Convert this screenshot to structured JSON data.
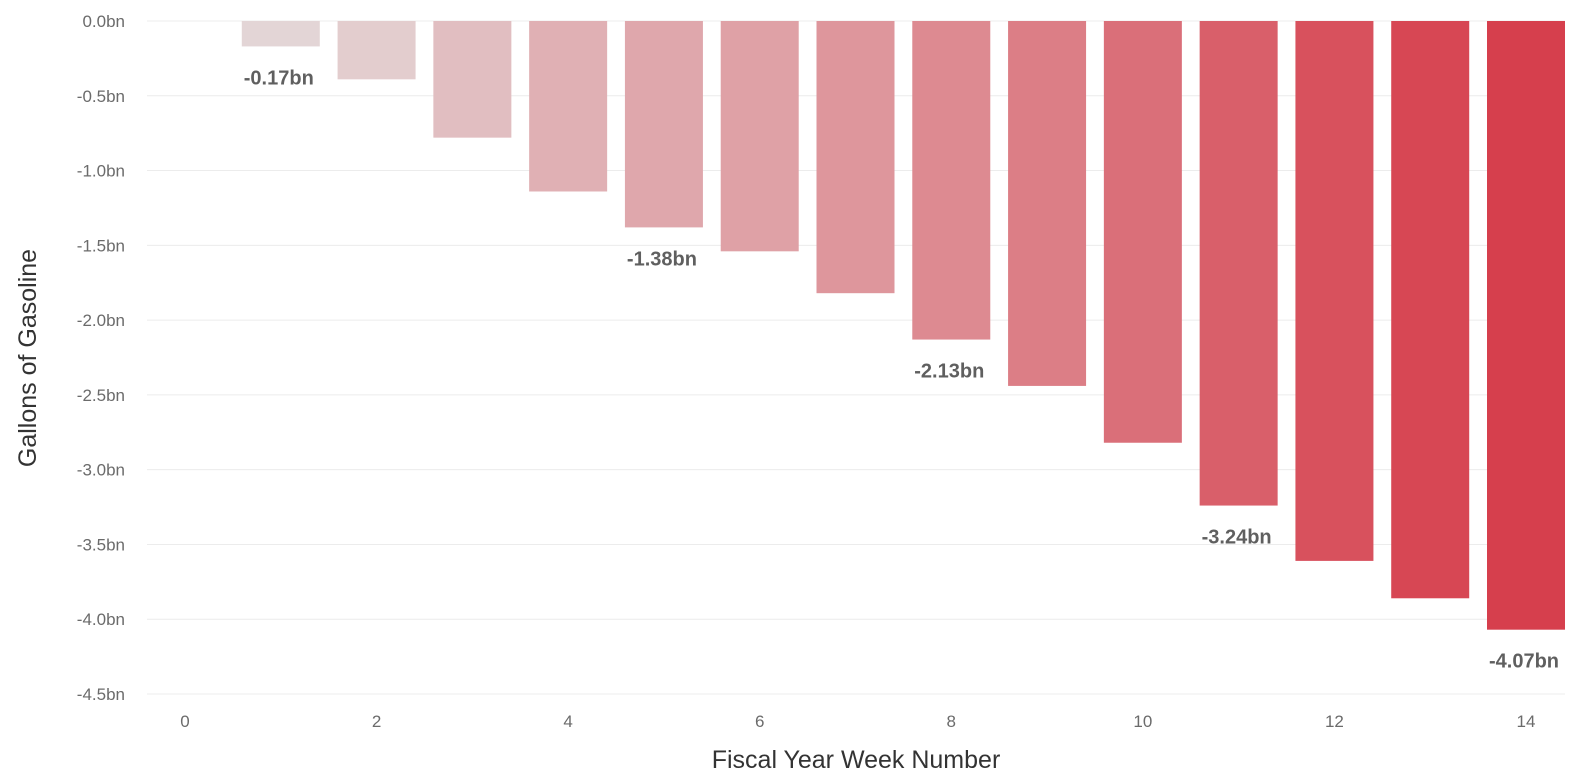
{
  "chart_data": {
    "type": "bar",
    "title": "",
    "xlabel": "Fiscal Year Week Number",
    "ylabel": "Gallons of Gasoline",
    "x": [
      1,
      2,
      3,
      4,
      5,
      6,
      7,
      8,
      9,
      10,
      11,
      12,
      13,
      14
    ],
    "values": [
      -0.17,
      -0.39,
      -0.78,
      -1.14,
      -1.38,
      -1.54,
      -1.82,
      -2.13,
      -2.44,
      -2.82,
      -3.24,
      -3.61,
      -3.86,
      -4.07
    ],
    "ylim": [
      -4.5,
      0
    ],
    "xlim": [
      0,
      14
    ],
    "y_ticks": [
      0,
      -0.5,
      -1.0,
      -1.5,
      -2.0,
      -2.5,
      -3.0,
      -3.5,
      -4.0,
      -4.5
    ],
    "y_tick_labels": [
      "0.0bn",
      "-0.5bn",
      "-1.0bn",
      "-1.5bn",
      "-2.0bn",
      "-2.5bn",
      "-3.0bn",
      "-3.5bn",
      "-4.0bn",
      "-4.5bn"
    ],
    "x_ticks": [
      0,
      2,
      4,
      6,
      8,
      10,
      12,
      14
    ],
    "x_tick_labels": [
      "0",
      "2",
      "4",
      "6",
      "8",
      "10",
      "12",
      "14"
    ],
    "data_labels": [
      {
        "x": 1,
        "text": "-0.17bn"
      },
      {
        "x": 5,
        "text": "-1.38bn"
      },
      {
        "x": 8,
        "text": "-2.13bn"
      },
      {
        "x": 11,
        "text": "-3.24bn"
      },
      {
        "x": 14,
        "text": "-4.07bn"
      }
    ],
    "grid": true,
    "legend": "none",
    "colors": {
      "light": "#e4dcdc",
      "dark": "#d63f4d"
    }
  }
}
